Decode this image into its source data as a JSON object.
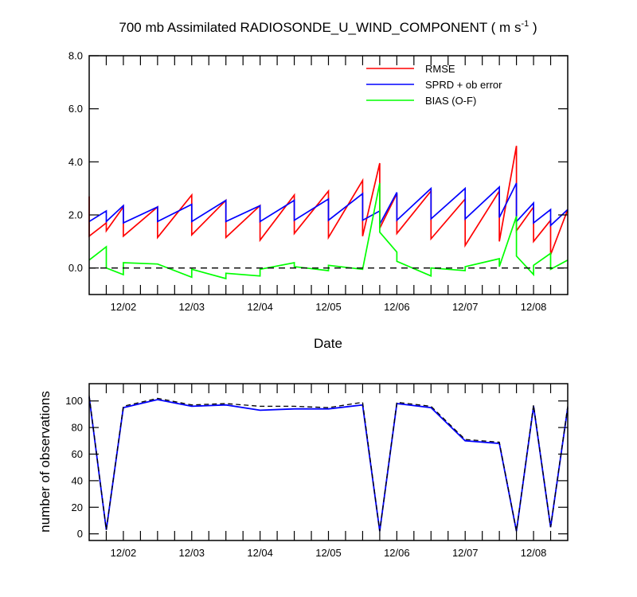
{
  "title": "700 mb Assimilated RADIOSONDE_U_WIND_COMPONENT ( m s",
  "title_sup": "-1",
  "title_end": " )",
  "top_xlabel": "Date",
  "bottom_ylabel": "number of observations",
  "legend": [
    "RMSE",
    "SPRD + ob error",
    "BIAS (O-F)"
  ],
  "colors": {
    "rmse": "#ff0000",
    "sprd": "#0000ff",
    "bias": "#00ff00",
    "obs": "#0000ff",
    "obs_assim": "#000000",
    "zero": "#000000"
  },
  "chart_data": [
    {
      "type": "line",
      "title": "700 mb Assimilated RADIOSONDE_U_WIND_COMPONENT ( m s-1 )",
      "xlabel": "Date",
      "ylabel": "",
      "xlim": [
        0,
        14
      ],
      "ylim": [
        -1,
        8
      ],
      "yticks": [
        0,
        2,
        4,
        6,
        8
      ],
      "ytick_labels": [
        "0.0",
        "2.0",
        "4.0",
        "6.0",
        "8.0"
      ],
      "xticks": [
        1,
        3,
        5,
        7,
        9,
        11,
        13
      ],
      "xtick_labels": [
        "12/02",
        "12/03",
        "12/04",
        "12/05",
        "12/06",
        "12/07",
        "12/08"
      ],
      "series": [
        {
          "name": "RMSE",
          "x": [
            0.0,
            0.0,
            0.5,
            0.5,
            1.0,
            1.0,
            2.0,
            2.0,
            3.0,
            3.0,
            4.0,
            4.0,
            5.0,
            5.0,
            6.0,
            6.0,
            7.0,
            7.0,
            8.0,
            8.0,
            8.5,
            8.5,
            9.0,
            9.0,
            10.0,
            10.0,
            11.0,
            11.0,
            12.0,
            12.0,
            12.5,
            12.5,
            13.0,
            13.0,
            13.5,
            13.5,
            14.0
          ],
          "y": [
            2.7,
            1.2,
            1.7,
            1.4,
            2.3,
            1.2,
            2.3,
            1.15,
            2.75,
            1.25,
            2.55,
            1.15,
            2.35,
            1.05,
            2.75,
            1.3,
            2.9,
            1.15,
            3.3,
            1.2,
            3.95,
            1.5,
            2.8,
            1.3,
            2.9,
            1.1,
            2.6,
            0.85,
            2.9,
            1.0,
            4.6,
            1.4,
            2.3,
            1.0,
            1.8,
            0.5,
            2.2
          ]
        },
        {
          "name": "SPRD + ob error",
          "x": [
            0.0,
            0.5,
            0.5,
            1.0,
            1.0,
            2.0,
            2.0,
            3.0,
            3.0,
            4.0,
            4.0,
            5.0,
            5.0,
            6.0,
            6.0,
            7.0,
            7.0,
            8.0,
            8.0,
            8.5,
            8.5,
            9.0,
            9.0,
            10.0,
            10.0,
            11.0,
            11.0,
            12.0,
            12.0,
            12.5,
            12.5,
            13.0,
            13.0,
            13.5,
            13.5,
            14.0
          ],
          "y": [
            1.75,
            2.15,
            1.75,
            2.35,
            1.7,
            2.3,
            1.75,
            2.4,
            1.75,
            2.55,
            1.75,
            2.35,
            1.75,
            2.55,
            1.8,
            2.6,
            1.8,
            2.8,
            1.8,
            2.15,
            1.65,
            2.85,
            1.8,
            3.0,
            1.85,
            3.0,
            1.85,
            3.05,
            1.9,
            3.2,
            1.75,
            2.45,
            1.7,
            2.2,
            1.6,
            2.2
          ]
        },
        {
          "name": "BIAS (O-F)",
          "x": [
            0.0,
            0.5,
            0.5,
            1.0,
            1.0,
            2.0,
            3.0,
            3.0,
            4.0,
            4.0,
            5.0,
            5.0,
            6.0,
            6.0,
            7.0,
            7.0,
            8.0,
            8.5,
            8.5,
            9.0,
            9.0,
            10.0,
            10.0,
            11.0,
            11.0,
            12.0,
            12.0,
            12.5,
            12.5,
            13.0,
            13.0,
            13.5,
            13.5,
            14.0
          ],
          "y": [
            0.3,
            0.8,
            0.0,
            -0.25,
            0.2,
            0.15,
            -0.35,
            -0.05,
            -0.4,
            -0.2,
            -0.3,
            -0.05,
            0.2,
            0.05,
            -0.1,
            0.1,
            -0.05,
            3.2,
            1.35,
            0.6,
            0.25,
            -0.3,
            0.0,
            -0.1,
            0.05,
            0.35,
            0.05,
            1.95,
            0.45,
            -0.25,
            0.1,
            0.55,
            -0.05,
            0.3
          ]
        },
        {
          "name": "zero line",
          "x": [
            0,
            14
          ],
          "y": [
            0,
            0
          ]
        }
      ]
    },
    {
      "type": "line",
      "title": "",
      "xlabel": "",
      "ylabel": "number of observations",
      "xlim": [
        0,
        14
      ],
      "ylim": [
        -5,
        113
      ],
      "yticks": [
        0,
        20,
        40,
        60,
        80,
        100
      ],
      "ytick_labels": [
        "0",
        "20",
        "40",
        "60",
        "80",
        "100"
      ],
      "xticks": [
        1,
        3,
        5,
        7,
        9,
        11,
        13
      ],
      "xtick_labels": [
        "12/02",
        "12/03",
        "12/04",
        "12/05",
        "12/06",
        "12/07",
        "12/08"
      ],
      "series": [
        {
          "name": "observations",
          "x": [
            0,
            0.5,
            1,
            2,
            3,
            4,
            5,
            6,
            7,
            8,
            8.5,
            9,
            10,
            11,
            12,
            12.5,
            13,
            13.5,
            14
          ],
          "y": [
            103,
            3,
            95,
            101,
            96,
            97,
            93,
            94,
            94,
            97,
            2,
            98,
            95,
            70,
            68,
            2,
            96,
            5,
            95
          ]
        },
        {
          "name": "assimilated (dashed)",
          "x": [
            0,
            0.5,
            1,
            2,
            3,
            4,
            5,
            6,
            7,
            8,
            8.5,
            9,
            10,
            11,
            12,
            12.5,
            13,
            13.5,
            14
          ],
          "y": [
            104,
            3,
            96,
            102,
            97,
            98,
            96,
            96,
            95,
            99,
            2,
            99,
            96,
            71,
            69,
            2,
            97,
            5,
            96
          ]
        }
      ]
    }
  ]
}
